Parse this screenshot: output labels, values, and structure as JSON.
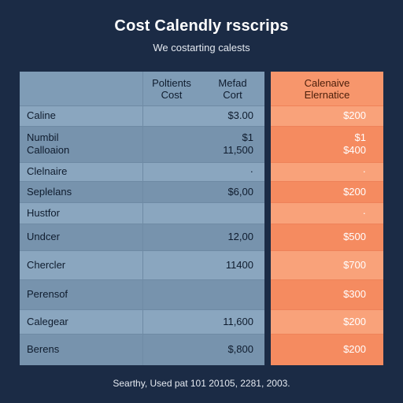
{
  "header": {
    "title": "Cost Calendly rsscrips",
    "subtitle": "We costarting calests"
  },
  "table": {
    "columns": {
      "col1": [
        "Poltients",
        "Cost"
      ],
      "col2": [
        "Mefad",
        "Cort"
      ],
      "col3": [
        "Calenaive",
        "Elernatice"
      ]
    },
    "rows": [
      {
        "label": [
          "Caline"
        ],
        "cost": [
          "$3.00"
        ],
        "alt": [
          "$200"
        ]
      },
      {
        "label": [
          "Numbil",
          "Calloaion"
        ],
        "cost": [
          "$1",
          "11,500"
        ],
        "alt": [
          "$1",
          "$400"
        ]
      },
      {
        "label": [
          "Clelnaire"
        ],
        "cost": [
          "·"
        ],
        "alt": [
          "·"
        ]
      },
      {
        "label": [
          "Seplelans"
        ],
        "cost": [
          "$6,00"
        ],
        "alt": [
          "$200"
        ]
      },
      {
        "label": [
          "Hustfor"
        ],
        "cost": [
          ""
        ],
        "alt": [
          "·"
        ]
      },
      {
        "label": [
          "Undcer"
        ],
        "cost": [
          "12,00"
        ],
        "alt": [
          "$500"
        ]
      },
      {
        "label": [
          "Chercler"
        ],
        "cost": [
          "11400"
        ],
        "alt": [
          "$700"
        ]
      },
      {
        "label": [
          "Perensof"
        ],
        "cost": [
          ""
        ],
        "alt": [
          "$300"
        ]
      },
      {
        "label": [
          "Calegear"
        ],
        "cost": [
          "11,600"
        ],
        "alt": [
          "$200"
        ]
      },
      {
        "label": [
          "Berens"
        ],
        "cost": [
          "$,800"
        ],
        "alt": [
          "$200"
        ]
      }
    ]
  },
  "footer": {
    "text": "Searthy, Used pat 101 20105, 2281, 2003."
  },
  "colors": {
    "background": "#1b2b45",
    "table_left": "#7f9cb6",
    "table_right": "#f7966c"
  }
}
